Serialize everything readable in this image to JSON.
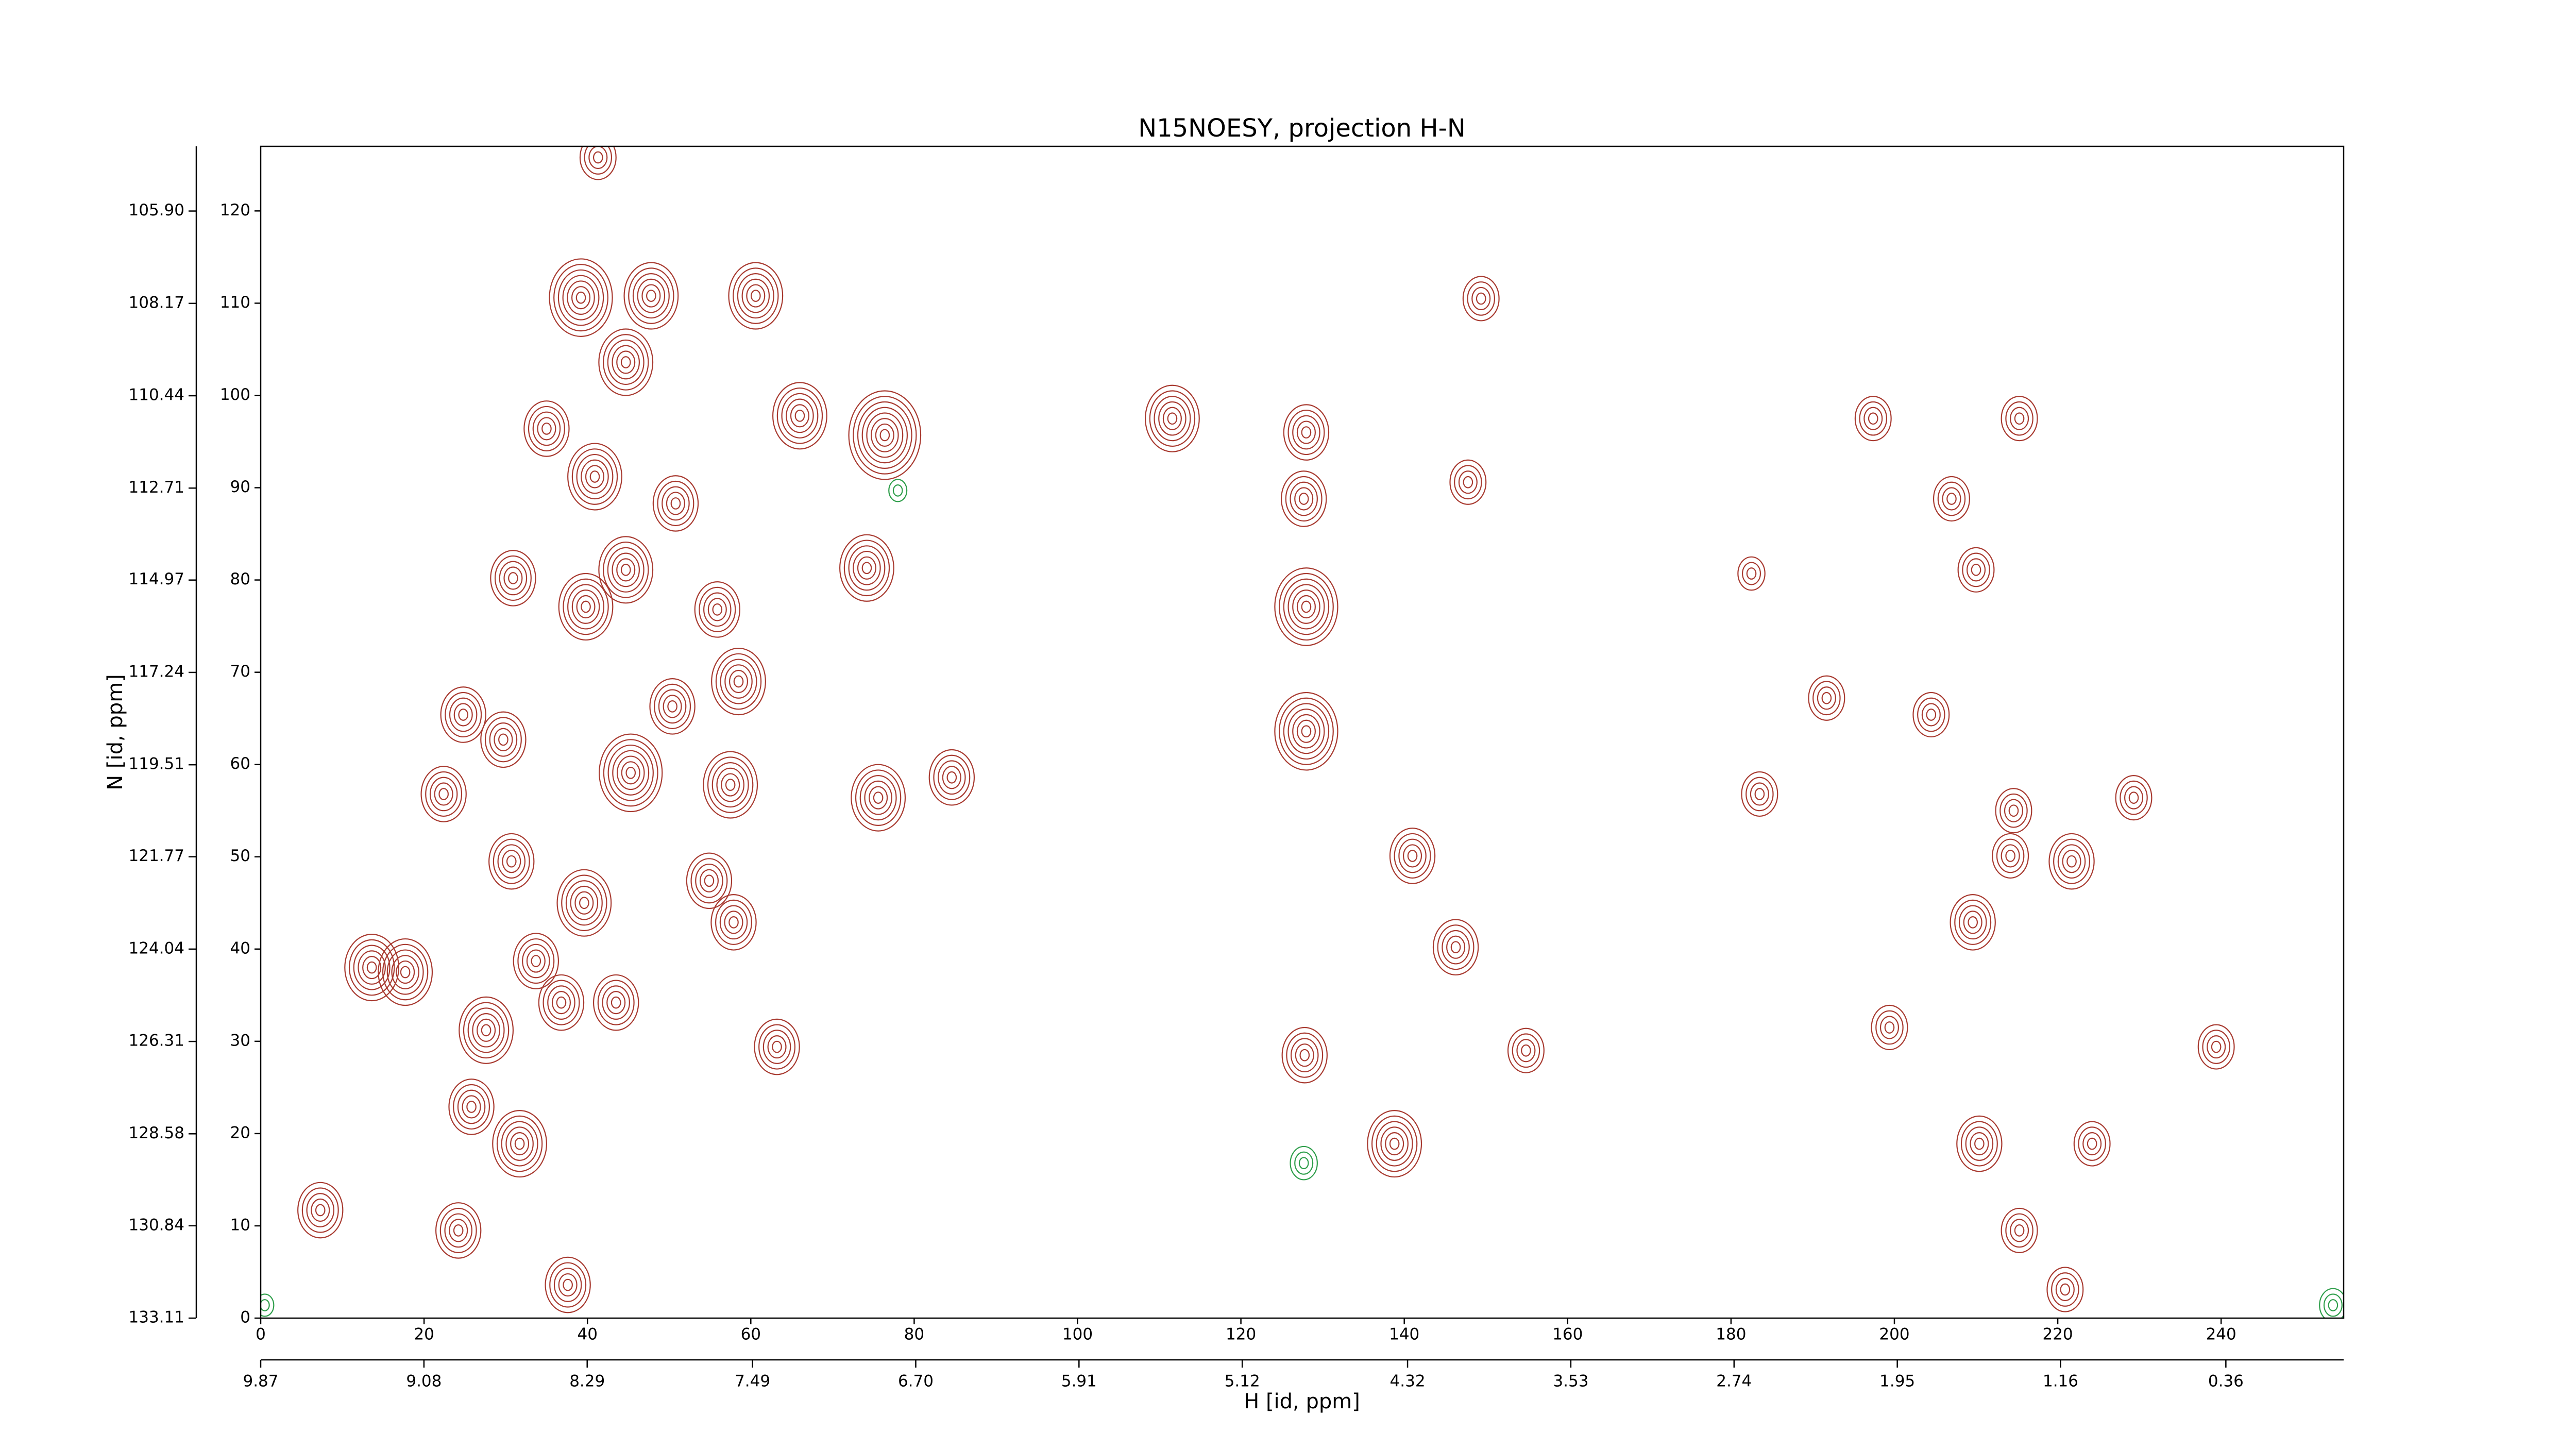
{
  "chart_data": {
    "type": "contour",
    "title": "N15NOESY, projection H-N",
    "x_label": "H [id, ppm]",
    "y_label": "N [id, ppm]",
    "xlim": [
      0,
      255
    ],
    "xticks": [
      0,
      20,
      40,
      60,
      80,
      100,
      120,
      140,
      160,
      180,
      200,
      220,
      240
    ],
    "ylim": [
      0,
      127
    ],
    "yticks": [
      0,
      10,
      20,
      30,
      40,
      50,
      60,
      70,
      80,
      90,
      100,
      110,
      120
    ],
    "x2lim": [
      9.87,
      -0.21
    ],
    "x2ticks": [
      9.87,
      9.08,
      8.29,
      7.49,
      {
        "value": 6.7,
        "label": "6.70"
      },
      5.91,
      5.12,
      4.32,
      3.53,
      2.74,
      1.95,
      1.16,
      0.36
    ],
    "y2lim": [
      133.11,
      104.31
    ],
    "y2ticks": [
      133.11,
      130.84,
      128.58,
      126.31,
      124.04,
      121.77,
      119.51,
      117.24,
      114.97,
      112.71,
      110.44,
      108.17,
      {
        "value": 105.9,
        "label": "105.90"
      }
    ],
    "peaks": {
      "color": "#a83a30",
      "x": [
        39.2,
        47.8,
        60.6,
        44.7,
        111.6,
        35,
        66,
        76.4,
        40.9,
        50.8,
        74.2,
        30.9,
        44.7,
        39.8,
        55.9,
        128,
        197.4,
        215.3,
        24.8,
        58.5,
        50.4,
        84.6,
        75.6,
        22.4,
        29.7,
        45.3,
        57.5,
        128,
        30.7,
        54.9,
        39.6,
        57.9,
        13.6,
        17.7,
        33.7,
        36.8,
        43.5,
        27.6,
        63.2,
        127.8,
        146.3,
        141,
        209.6,
        214.2,
        221.7,
        214.6,
        31.7,
        25.8,
        138.8,
        210.4,
        224.2,
        24.2,
        7.3,
        37.6,
        215.3,
        220.9,
        154.9,
        199.4,
        204.5,
        191.7,
        183.5,
        229.3,
        239.4,
        127.7,
        128,
        147.8,
        149.4,
        207,
        182.5,
        210,
        41.3
      ],
      "y": [
        110.6,
        110.8,
        110.8,
        103.6,
        97.5,
        96.4,
        97.8,
        95.7,
        91.2,
        88.3,
        81.3,
        80.2,
        81.1,
        77.1,
        76.8,
        77.1,
        97.5,
        97.5,
        65.4,
        69,
        66.3,
        58.6,
        56.4,
        56.8,
        62.7,
        59.1,
        57.8,
        63.6,
        49.5,
        47.4,
        45,
        42.9,
        38,
        37.5,
        38.7,
        34.2,
        34.2,
        31.2,
        29.4,
        28.5,
        40.2,
        50.1,
        42.9,
        50.1,
        49.5,
        55,
        18.9,
        22.9,
        18.9,
        18.9,
        18.9,
        9.5,
        11.7,
        3.6,
        9.5,
        3.1,
        29,
        31.5,
        65.4,
        67.2,
        56.8,
        56.4,
        29.4,
        88.8,
        96,
        90.6,
        110.5,
        88.8,
        80.7,
        81.1,
        125.8
      ],
      "levels": [
        7,
        6,
        6,
        6,
        6,
        5,
        6,
        8,
        6,
        5,
        6,
        5,
        6,
        6,
        5,
        7,
        4,
        4,
        5,
        6,
        5,
        5,
        6,
        5,
        5,
        7,
        6,
        7,
        5,
        5,
        6,
        5,
        6,
        6,
        5,
        5,
        5,
        6,
        5,
        5,
        5,
        5,
        5,
        4,
        5,
        4,
        6,
        5,
        6,
        5,
        4,
        5,
        5,
        5,
        4,
        4,
        4,
        4,
        4,
        4,
        4,
        4,
        4,
        5,
        5,
        4,
        4,
        4,
        3,
        4,
        4
      ]
    },
    "negative_peaks": {
      "color": "#2e9e4a",
      "x": [
        127.7,
        253.7,
        78,
        0.5
      ],
      "y": [
        16.8,
        1.4,
        89.7,
        1.4
      ],
      "levels": [
        3,
        3,
        2,
        2
      ]
    }
  }
}
